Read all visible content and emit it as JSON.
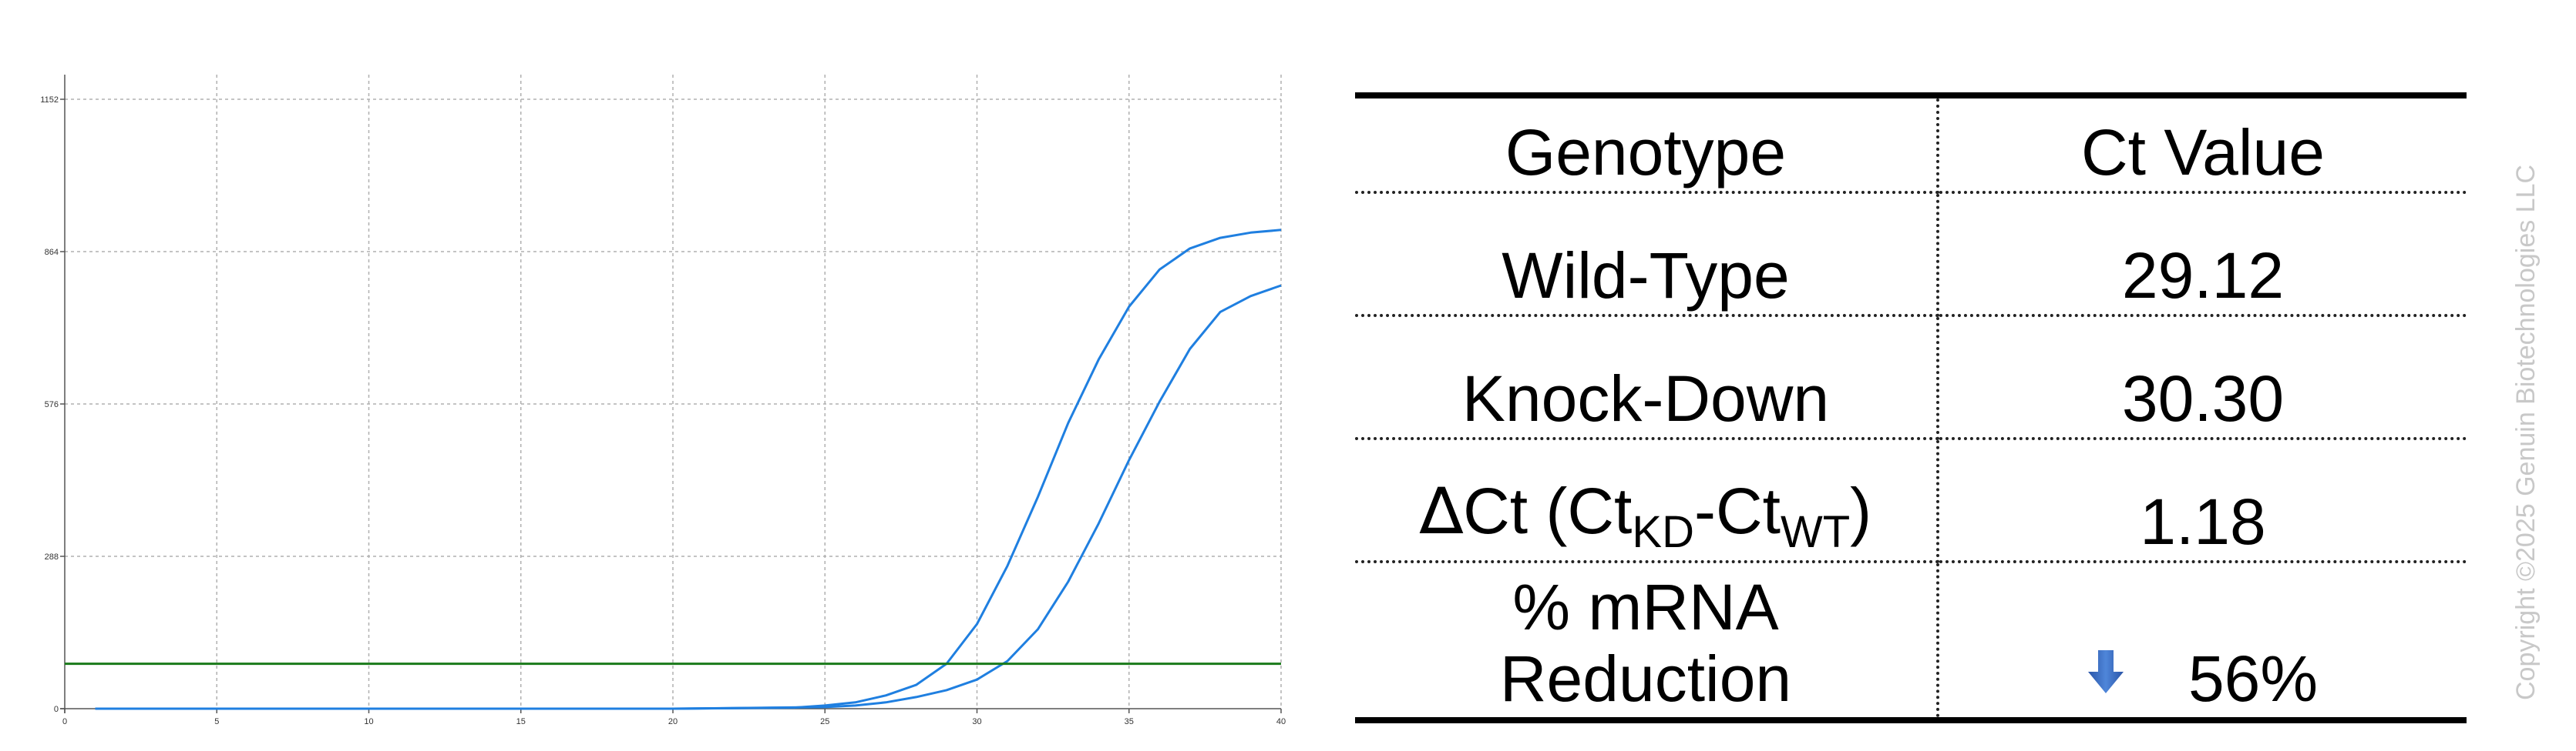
{
  "chart_data": {
    "type": "line",
    "x_ticks": [
      0,
      5,
      10,
      15,
      20,
      25,
      30,
      35,
      40
    ],
    "y_ticks": [
      0,
      288,
      576,
      864,
      1152
    ],
    "xlim": [
      0,
      40
    ],
    "ylim": [
      0,
      1200
    ],
    "grid": true,
    "threshold": 85,
    "colors": {
      "curve": "#1f7fe0",
      "threshold": "#1a7a1a",
      "grid": "#b0b0b0"
    },
    "series": [
      {
        "x": [
          1,
          5,
          10,
          15,
          20,
          24,
          25,
          26,
          27,
          28,
          29,
          30,
          31,
          32,
          33,
          34,
          35,
          36,
          37,
          38,
          39,
          40
        ],
        "y": [
          0,
          0,
          0,
          0,
          0,
          2,
          6,
          12,
          25,
          45,
          85,
          160,
          270,
          400,
          540,
          660,
          760,
          830,
          870,
          890,
          900,
          905
        ]
      },
      {
        "x": [
          1,
          5,
          10,
          15,
          20,
          25,
          26,
          27,
          28,
          29,
          30,
          31,
          32,
          33,
          34,
          35,
          36,
          37,
          38,
          39,
          40
        ],
        "y": [
          0,
          0,
          0,
          0,
          0,
          3,
          6,
          12,
          22,
          35,
          55,
          90,
          150,
          240,
          350,
          470,
          580,
          680,
          750,
          780,
          800
        ]
      }
    ]
  },
  "table": {
    "header": {
      "genotype": "Genotype",
      "ct": "Ct Value"
    },
    "wt": {
      "label": "Wild-Type",
      "value": "29.12"
    },
    "kd": {
      "label": "Knock-Down",
      "value": "30.30"
    },
    "delta": {
      "symbol": "∆",
      "ct": "Ct (Ct",
      "sub1": "KD",
      "mid": "-Ct",
      "sub2": "WT",
      "close": ")",
      "value": "1.18"
    },
    "reduction": {
      "line1": "% mRNA",
      "line2": "Reduction",
      "value": "56%",
      "arrow_icon": "arrow-down-icon"
    }
  },
  "copyright": "Copyright ©2025 Genuin Biotechnologies LLC"
}
